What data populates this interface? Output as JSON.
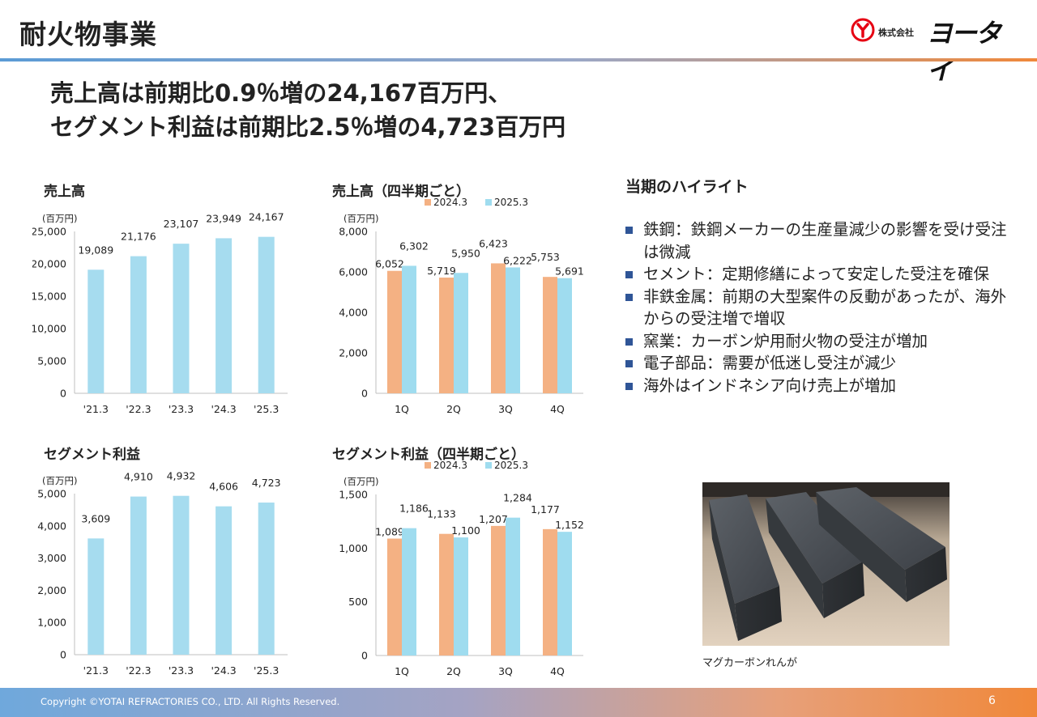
{
  "page": {
    "title": "耐火物事業",
    "logo": {
      "corp": "株式会社",
      "brand": "ヨータイ"
    },
    "headline": [
      "売上高は前期比0.9％増の24,167百万円、",
      "セグメント利益は前期比2.5％増の4,723百万円"
    ],
    "highlight": {
      "title": "当期のハイライト",
      "items": [
        "鉄鋼：鉄鋼メーカーの生産量減少の影響を受け受注は微減",
        "セメント：定期修繕によって安定した受注を確保",
        "非鉄金属：前期の大型案件の反動があったが、海外からの受注増で増収",
        "窯業：カーボン炉用耐火物の受注が増加",
        "電子部品：需要が低迷し受注が減少",
        "海外はインドネシア向け売上が増加"
      ]
    },
    "photo_caption": "マグカーボンれんが",
    "footer": {
      "copyright": "Copyright ©YOTAI REFRACTORIES CO., LTD. All Rights Reserved.",
      "page_number": "6"
    }
  },
  "colors": {
    "series_2024": "#f4b183",
    "series_2025": "#9fdcef",
    "annual": "#a6dcef",
    "bullet": "#2f5597"
  },
  "chart_data": [
    {
      "id": "sales_annual",
      "type": "bar",
      "title": "売上高",
      "unit": "(百万円)",
      "categories": [
        "'21.3",
        "'22.3",
        "'23.3",
        "'24.3",
        "'25.3"
      ],
      "values": [
        19089,
        21176,
        23107,
        23949,
        24167
      ],
      "labels": [
        "19,089",
        "21,176",
        "23,107",
        "23,949",
        "24,167"
      ],
      "ylim": [
        0,
        25000
      ],
      "yticks": [
        0,
        5000,
        10000,
        15000,
        20000,
        25000
      ],
      "ytick_labels": [
        "0",
        "5,000",
        "10,000",
        "15,000",
        "20,000",
        "25,000"
      ]
    },
    {
      "id": "sales_quarterly",
      "type": "bar",
      "title": "売上高（四半期ごと）",
      "unit": "(百万円)",
      "categories": [
        "1Q",
        "2Q",
        "3Q",
        "4Q"
      ],
      "series": [
        {
          "name": "2024.3",
          "values": [
            6052,
            5719,
            6423,
            5753
          ],
          "labels": [
            "6,052",
            "5,719",
            "6,423",
            "5,753"
          ]
        },
        {
          "name": "2025.3",
          "values": [
            6302,
            5950,
            6222,
            5691
          ],
          "labels": [
            "6,302",
            "5,950",
            "6,222",
            "5,691"
          ]
        }
      ],
      "ylim": [
        0,
        8000
      ],
      "yticks": [
        0,
        2000,
        4000,
        6000,
        8000
      ],
      "ytick_labels": [
        "0",
        "2,000",
        "4,000",
        "6,000",
        "8,000"
      ]
    },
    {
      "id": "profit_annual",
      "type": "bar",
      "title": "セグメント利益",
      "unit": "(百万円)",
      "categories": [
        "'21.3",
        "'22.3",
        "'23.3",
        "'24.3",
        "'25.3"
      ],
      "values": [
        3609,
        4910,
        4932,
        4606,
        4723
      ],
      "labels": [
        "3,609",
        "4,910",
        "4,932",
        "4,606",
        "4,723"
      ],
      "ylim": [
        0,
        5000
      ],
      "yticks": [
        0,
        1000,
        2000,
        3000,
        4000,
        5000
      ],
      "ytick_labels": [
        "0",
        "1,000",
        "2,000",
        "3,000",
        "4,000",
        "5,000"
      ]
    },
    {
      "id": "profit_quarterly",
      "type": "bar",
      "title": "セグメント利益（四半期ごと）",
      "unit": "(百万円)",
      "categories": [
        "1Q",
        "2Q",
        "3Q",
        "4Q"
      ],
      "series": [
        {
          "name": "2024.3",
          "values": [
            1089,
            1133,
            1207,
            1177
          ],
          "labels": [
            "1,089",
            "1,133",
            "1,207",
            "1,177"
          ]
        },
        {
          "name": "2025.3",
          "values": [
            1186,
            1100,
            1284,
            1152
          ],
          "labels": [
            "1,186",
            "1,100",
            "1,284",
            "1,152"
          ]
        }
      ],
      "ylim": [
        0,
        1500
      ],
      "yticks": [
        0,
        500,
        1000,
        1500
      ],
      "ytick_labels": [
        "0",
        "500",
        "1,000",
        "1,500"
      ]
    }
  ]
}
